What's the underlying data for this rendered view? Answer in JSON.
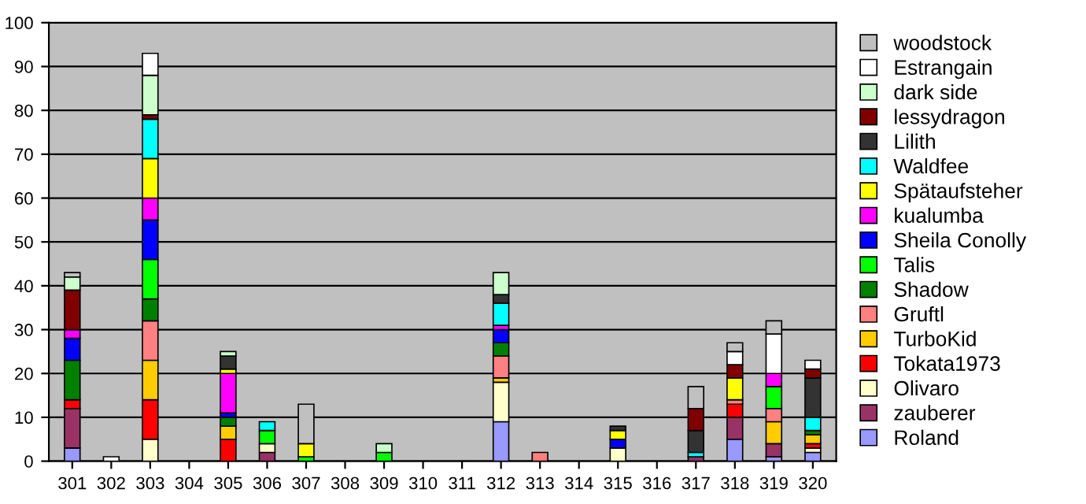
{
  "chart_data": {
    "type": "bar",
    "stacked": true,
    "categories": [
      "301",
      "302",
      "303",
      "304",
      "305",
      "306",
      "307",
      "308",
      "309",
      "310",
      "311",
      "312",
      "313",
      "314",
      "315",
      "316",
      "317",
      "318",
      "319",
      "320"
    ],
    "series": [
      {
        "name": "Roland",
        "color": "#9999ff",
        "values": [
          3,
          null,
          null,
          null,
          null,
          null,
          null,
          null,
          null,
          null,
          null,
          9,
          null,
          null,
          null,
          null,
          null,
          5,
          1,
          2
        ]
      },
      {
        "name": "zauberer",
        "color": "#993366",
        "values": [
          9,
          null,
          null,
          null,
          null,
          2,
          null,
          null,
          null,
          null,
          null,
          null,
          null,
          null,
          null,
          null,
          1,
          5,
          3,
          null
        ]
      },
      {
        "name": "Olivaro",
        "color": "#ffffcc",
        "values": [
          null,
          null,
          5,
          null,
          null,
          2,
          null,
          null,
          null,
          null,
          null,
          9,
          null,
          null,
          3,
          null,
          null,
          null,
          null,
          1
        ]
      },
      {
        "name": "Tokata1973",
        "color": "#ff0000",
        "values": [
          2,
          null,
          9,
          null,
          5,
          null,
          null,
          null,
          null,
          null,
          null,
          null,
          null,
          null,
          null,
          null,
          null,
          3,
          null,
          1
        ]
      },
      {
        "name": "TurboKid",
        "color": "#ffcc00",
        "values": [
          null,
          null,
          9,
          null,
          3,
          null,
          null,
          null,
          null,
          null,
          null,
          1,
          null,
          null,
          null,
          null,
          null,
          null,
          5,
          2
        ]
      },
      {
        "name": "Gruftl",
        "color": "#ff8080",
        "values": [
          null,
          null,
          9,
          null,
          null,
          null,
          null,
          null,
          null,
          null,
          null,
          5,
          2,
          null,
          null,
          null,
          null,
          1,
          3,
          null
        ]
      },
      {
        "name": "Shadow",
        "color": "#008000",
        "values": [
          9,
          null,
          5,
          null,
          2,
          null,
          null,
          null,
          null,
          null,
          null,
          3,
          null,
          null,
          null,
          null,
          null,
          null,
          null,
          1
        ]
      },
      {
        "name": "Talis",
        "color": "#00ff00",
        "values": [
          null,
          null,
          9,
          null,
          null,
          3,
          1,
          null,
          2,
          null,
          null,
          null,
          null,
          null,
          null,
          null,
          null,
          null,
          5,
          null
        ]
      },
      {
        "name": "Sheila Conolly",
        "color": "#0000ff",
        "values": [
          5,
          null,
          9,
          null,
          1,
          null,
          null,
          null,
          null,
          null,
          null,
          3,
          null,
          null,
          2,
          null,
          null,
          null,
          null,
          null
        ]
      },
      {
        "name": "kualumba",
        "color": "#ff00ff",
        "values": [
          2,
          null,
          5,
          null,
          9,
          null,
          null,
          null,
          null,
          null,
          null,
          1,
          null,
          null,
          null,
          null,
          null,
          null,
          3,
          null
        ]
      },
      {
        "name": "Spätaufsteher",
        "color": "#ffff00",
        "values": [
          null,
          null,
          9,
          null,
          1,
          null,
          3,
          null,
          null,
          null,
          null,
          null,
          null,
          null,
          2,
          null,
          null,
          5,
          null,
          null
        ]
      },
      {
        "name": "Waldfee",
        "color": "#00ffff",
        "values": [
          null,
          null,
          9,
          null,
          null,
          2,
          null,
          null,
          null,
          null,
          null,
          5,
          null,
          null,
          null,
          null,
          1,
          null,
          null,
          3
        ]
      },
      {
        "name": "Lilith",
        "color": "#333333",
        "values": [
          null,
          null,
          null,
          null,
          3,
          null,
          null,
          null,
          null,
          null,
          null,
          2,
          null,
          null,
          1,
          null,
          5,
          null,
          null,
          9
        ]
      },
      {
        "name": "lessydragon",
        "color": "#800000",
        "values": [
          9,
          null,
          1,
          null,
          null,
          null,
          null,
          null,
          null,
          null,
          null,
          null,
          null,
          null,
          null,
          null,
          5,
          3,
          null,
          2
        ]
      },
      {
        "name": "dark side",
        "color": "#ccffcc",
        "values": [
          3,
          null,
          9,
          null,
          1,
          null,
          null,
          null,
          2,
          null,
          null,
          5,
          null,
          null,
          null,
          null,
          null,
          null,
          null,
          null
        ]
      },
      {
        "name": "Estrangain",
        "color": "#ffffff",
        "values": [
          null,
          1,
          5,
          null,
          null,
          null,
          null,
          null,
          null,
          null,
          null,
          null,
          null,
          null,
          null,
          null,
          null,
          3,
          9,
          2
        ]
      },
      {
        "name": "woodstock",
        "color": "#c0c0c0",
        "values": [
          1,
          null,
          null,
          null,
          null,
          null,
          9,
          null,
          null,
          null,
          null,
          null,
          null,
          null,
          null,
          null,
          5,
          2,
          3,
          null
        ]
      }
    ],
    "ylim": [
      0,
      100
    ],
    "yticks": [
      0,
      10,
      20,
      30,
      40,
      50,
      60,
      70,
      80,
      90,
      100
    ],
    "grid": "y",
    "legend": "right"
  }
}
